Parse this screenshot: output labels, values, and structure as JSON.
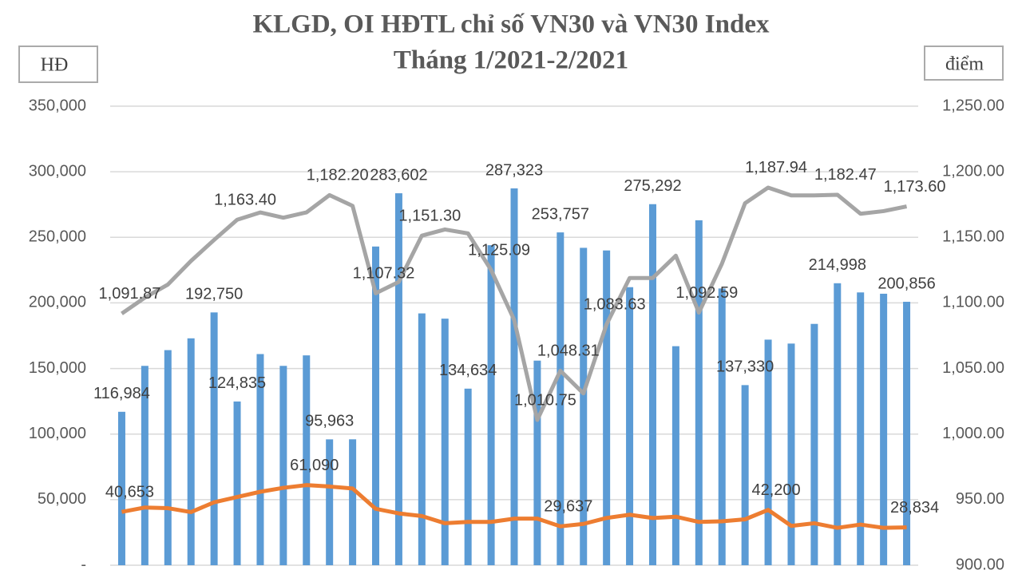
{
  "chart_data": {
    "type": "bar",
    "title": "KLGD, OI HĐTL chỉ số VN30 và VN30 Index",
    "subtitle": "Tháng 1/2021-2/2021",
    "y_label": "HĐ",
    "y2_label": "điểm",
    "categories": [
      null,
      null,
      null,
      null,
      null,
      null,
      null,
      null,
      null,
      null,
      null,
      null,
      null,
      null,
      null,
      null,
      null,
      null,
      null,
      null,
      null,
      null,
      null,
      null,
      null,
      null,
      null,
      null,
      null,
      null,
      null,
      null,
      null,
      null,
      null
    ],
    "ylim": [
      0,
      350000
    ],
    "yticks": [
      {
        "value": 0,
        "label": "-"
      },
      {
        "value": 50000,
        "label": "50,000"
      },
      {
        "value": 100000,
        "label": "100,000"
      },
      {
        "value": 150000,
        "label": "150,000"
      },
      {
        "value": 200000,
        "label": "200,000"
      },
      {
        "value": 250000,
        "label": "250,000"
      },
      {
        "value": 300000,
        "label": "300,000"
      },
      {
        "value": 350000,
        "label": "350,000"
      }
    ],
    "y2lim": [
      900,
      1250
    ],
    "y2ticks": [
      {
        "value": 900,
        "label": "900.00"
      },
      {
        "value": 950,
        "label": "950.00"
      },
      {
        "value": 1000,
        "label": "1,000.00"
      },
      {
        "value": 1050,
        "label": "1,050.00"
      },
      {
        "value": 1100,
        "label": "1,100.00"
      },
      {
        "value": 1150,
        "label": "1,150.00"
      },
      {
        "value": 1200,
        "label": "1,200.00"
      },
      {
        "value": 1250,
        "label": "1,250.00"
      }
    ],
    "grid": true,
    "series": [
      {
        "type": "bar",
        "color": "#5b9bd5",
        "values": [
          116984,
          152000,
          164000,
          173000,
          192750,
          124835,
          161000,
          152000,
          160000,
          95963,
          96000,
          243000,
          283602,
          192000,
          188000,
          134634,
          244000,
          287323,
          156000,
          253757,
          242000,
          240000,
          212000,
          275292,
          167000,
          263000,
          211000,
          137330,
          172000,
          169000,
          184000,
          214998,
          208000,
          207000,
          200856
        ],
        "value_labels": [
          "116,984",
          null,
          null,
          null,
          "192,750",
          "124,835",
          null,
          null,
          null,
          "95,963",
          null,
          null,
          "283,602",
          null,
          null,
          "134,634",
          null,
          "287,323",
          null,
          "253,757",
          null,
          null,
          null,
          "275,292",
          null,
          null,
          null,
          "137,330",
          null,
          null,
          null,
          "214,998",
          null,
          null,
          "200,856"
        ]
      },
      {
        "type": "line",
        "color": "#ed7d31",
        "values": [
          40653,
          44000,
          43500,
          40500,
          48000,
          52000,
          56000,
          59000,
          61090,
          60000,
          58500,
          43000,
          39500,
          37500,
          32000,
          33000,
          33000,
          35500,
          35500,
          29637,
          31500,
          36000,
          38500,
          36000,
          37000,
          33000,
          33500,
          35000,
          42200,
          30000,
          32000,
          28500,
          31000,
          28500,
          28834
        ],
        "value_labels": [
          "40,653",
          null,
          null,
          null,
          null,
          null,
          null,
          null,
          "61,090",
          null,
          null,
          null,
          null,
          null,
          null,
          null,
          null,
          null,
          null,
          "29,637",
          null,
          null,
          null,
          null,
          null,
          null,
          null,
          null,
          "42,200",
          null,
          null,
          null,
          null,
          null,
          "28,834"
        ]
      },
      {
        "type": "line",
        "axis": "y2",
        "color": "#a5a5a5",
        "values": [
          1091.87,
          1104,
          1114,
          1132,
          1148,
          1163.4,
          1169,
          1165,
          1169,
          1182.2,
          1174,
          1107.32,
          1116,
          1151.3,
          1156,
          1153,
          1125.09,
          1087,
          1010.75,
          1048.31,
          1031,
          1083.63,
          1119,
          1119,
          1136,
          1092.59,
          1130,
          1176,
          1187.94,
          1182,
          1182,
          1182.47,
          1168,
          1170,
          1173.6
        ],
        "value_labels": [
          "1,091.87",
          null,
          null,
          null,
          null,
          "1,163.40",
          null,
          null,
          null,
          "1,182.20",
          null,
          "1,107.32",
          null,
          "1,151.30",
          null,
          null,
          "1,125.09",
          null,
          "1,010.75",
          "1,048.31",
          null,
          "1,083.63",
          null,
          null,
          null,
          "1,092.59",
          null,
          null,
          "1,187.94",
          null,
          null,
          "1,182.47",
          null,
          null,
          "1,173.60"
        ]
      }
    ]
  }
}
